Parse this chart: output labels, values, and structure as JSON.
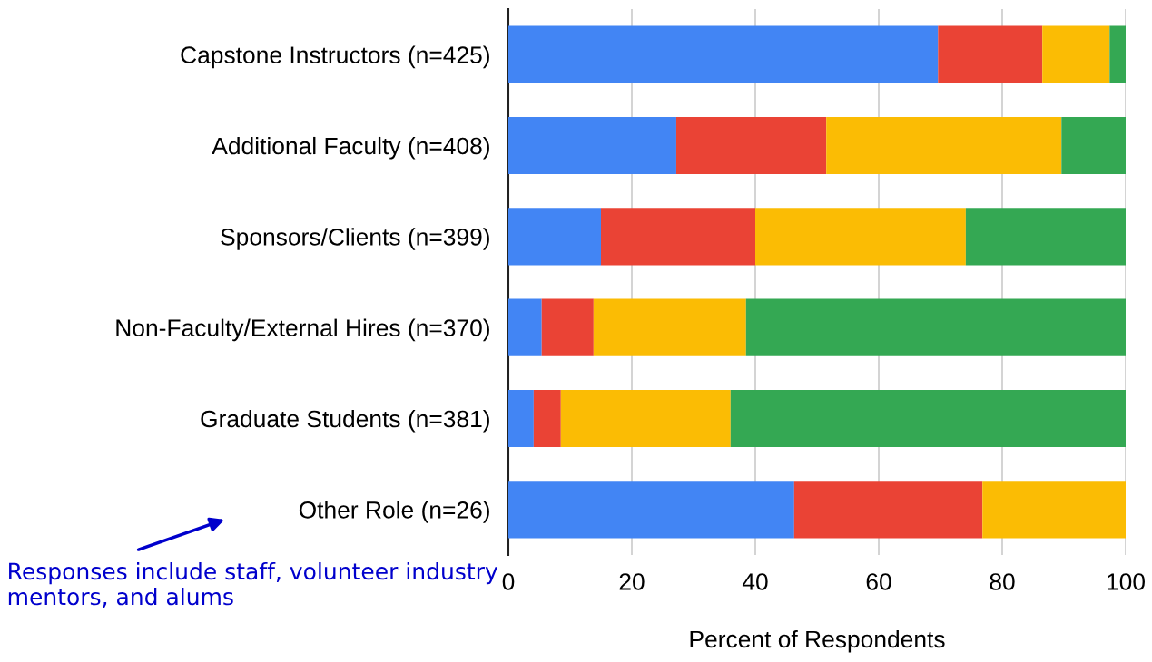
{
  "chart_data": {
    "type": "bar",
    "orientation": "horizontal",
    "stacked": true,
    "categories": [
      "Capstone Instructors (n=425)",
      "Additional Faculty (n=408)",
      "Sponsors/Clients (n=399)",
      "Non-Faculty/External Hires (n=370)",
      "Graduate Students (n=381)",
      "Other Role (n=26)"
    ],
    "series": [
      {
        "color": "#4285f4",
        "values": [
          69.6,
          27.2,
          15.0,
          5.4,
          4.1,
          46.3
        ]
      },
      {
        "color": "#ea4335",
        "values": [
          16.9,
          24.3,
          25.0,
          8.4,
          4.4,
          30.5
        ]
      },
      {
        "color": "#fbbc04",
        "values": [
          10.9,
          38.1,
          34.1,
          24.7,
          27.5,
          23.2
        ]
      },
      {
        "color": "#34a853",
        "values": [
          2.6,
          10.4,
          25.9,
          61.5,
          64.0,
          0
        ]
      }
    ],
    "xlabel": "Percent of Respondents",
    "xlim": [
      0,
      100
    ],
    "xticks": [
      0,
      20,
      40,
      60,
      80,
      100
    ],
    "grid": "x",
    "legend": false,
    "annotations": [
      "Responses include staff, volunteer industry mentors, and alums"
    ]
  }
}
